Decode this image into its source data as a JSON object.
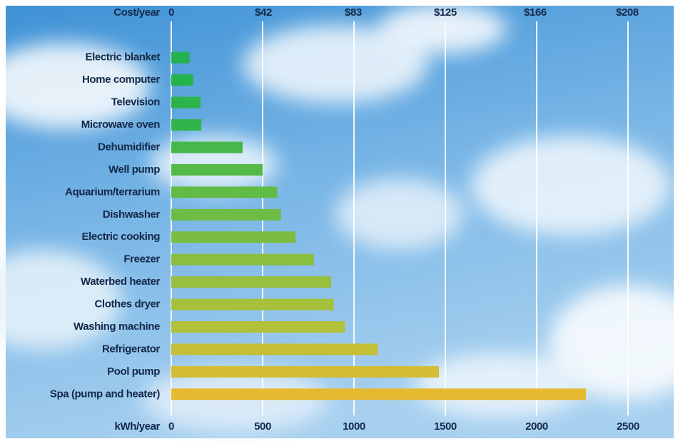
{
  "chart_data": {
    "type": "bar",
    "orientation": "horizontal",
    "categories": [
      "Electric blanket",
      "Home computer",
      "Television",
      "Microwave oven",
      "Dehumidifier",
      "Well pump",
      "Aquarium/terrarium",
      "Dishwasher",
      "Electric cooking",
      "Freezer",
      "Waterbed heater",
      "Clothes dryer",
      "Washing machine",
      "Refrigerator",
      "Pool pump",
      "Spa (pump and heater)"
    ],
    "values": [
      100,
      120,
      160,
      165,
      390,
      500,
      580,
      600,
      680,
      780,
      875,
      890,
      950,
      1130,
      1465,
      2270
    ],
    "colors": [
      "#23b14d",
      "#27b34c",
      "#2cb44b",
      "#31b54a",
      "#46b748",
      "#55b946",
      "#62bb45",
      "#6ebc43",
      "#7bbd41",
      "#89be3f",
      "#98bf3d",
      "#a5c03b",
      "#b3c039",
      "#c4bf36",
      "#d3bd33",
      "#e7b92f"
    ],
    "xlabel": "kWh/year",
    "xlim": [
      0,
      2750
    ],
    "xticks": [
      0,
      500,
      1000,
      1500,
      2000,
      2500
    ],
    "x2label": "Cost/year",
    "x2lim": [
      0,
      229.2
    ],
    "x2ticks": [
      0,
      {
        "value": 42,
        "label": "$42"
      },
      {
        "value": 83,
        "label": "$83"
      },
      {
        "value": 125,
        "label": "$125"
      },
      {
        "value": 166,
        "label": "$166"
      },
      {
        "value": 208,
        "label": "$208"
      }
    ],
    "grid": true
  }
}
